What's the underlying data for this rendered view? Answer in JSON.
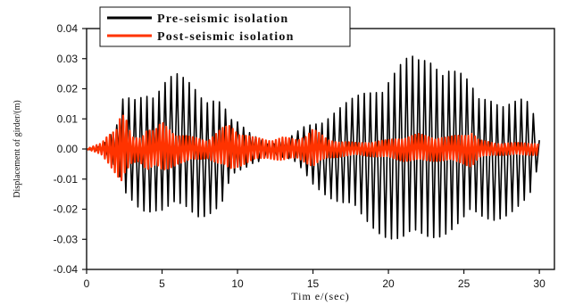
{
  "chart_data": {
    "type": "line",
    "title": "",
    "xlabel": "Tim e/(sec)",
    "ylabel": "Displacement of girder/(m)",
    "xlim": [
      0,
      31
    ],
    "ylim": [
      -0.04,
      0.04
    ],
    "x_ticks": [
      0,
      5,
      10,
      15,
      20,
      25,
      30
    ],
    "x_tick_labels": [
      "0",
      "5",
      "10",
      "15",
      "20",
      "25",
      "30"
    ],
    "y_ticks": [
      0.04,
      0.03,
      0.02,
      0.01,
      0.0,
      -0.01,
      -0.02,
      -0.03,
      -0.04
    ],
    "y_tick_labels": [
      "0.04",
      "0.03",
      "0.02",
      "0.01",
      "0.00",
      "-0.01",
      "-0.02",
      "-0.03",
      "-0.04"
    ],
    "grid": false,
    "legend_position": "top-left",
    "series": [
      {
        "name": "Pre-seismic isolation",
        "color": "#000000",
        "oscillation_period_sec": 0.4,
        "envelope": {
          "t": [
            0,
            1.0,
            1.5,
            2.0,
            2.5,
            3.0,
            3.5,
            4.0,
            4.5,
            5.0,
            5.5,
            6.0,
            6.5,
            7.0,
            7.5,
            8.0,
            8.5,
            9.0,
            9.5,
            10.0,
            10.5,
            11.0,
            11.5,
            12.0,
            12.5,
            13.0,
            13.5,
            14.0,
            14.5,
            15.0,
            16.0,
            17.0,
            18.0,
            19.0,
            20.0,
            21.0,
            21.5,
            22.0,
            22.5,
            23.0,
            23.5,
            24.0,
            25.0,
            25.5,
            26.0,
            27.0,
            28.0,
            29.0,
            29.5,
            30.0
          ],
          "max": [
            0.0,
            0.001,
            0.004,
            0.008,
            0.019,
            0.017,
            0.02,
            0.022,
            0.019,
            0.022,
            0.024,
            0.025,
            0.024,
            0.023,
            0.021,
            0.019,
            0.018,
            0.016,
            0.01,
            0.009,
            0.007,
            0.005,
            0.004,
            0.002,
            0.002,
            0.003,
            0.004,
            0.006,
            0.008,
            0.009,
            0.012,
            0.015,
            0.018,
            0.021,
            0.026,
            0.03,
            0.031,
            0.03,
            0.031,
            0.032,
            0.031,
            0.03,
            0.025,
            0.021,
            0.017,
            0.018,
            0.017,
            0.017,
            0.014,
            0.003
          ],
          "min": [
            0.0,
            -0.001,
            -0.004,
            -0.008,
            -0.016,
            -0.018,
            -0.02,
            -0.021,
            -0.021,
            -0.022,
            -0.022,
            -0.022,
            -0.021,
            -0.022,
            -0.023,
            -0.022,
            -0.021,
            -0.019,
            -0.012,
            -0.009,
            -0.007,
            -0.005,
            -0.004,
            -0.002,
            -0.002,
            -0.003,
            -0.004,
            -0.006,
            -0.009,
            -0.012,
            -0.016,
            -0.02,
            -0.024,
            -0.027,
            -0.03,
            -0.033,
            -0.034,
            -0.032,
            -0.031,
            -0.03,
            -0.029,
            -0.028,
            -0.026,
            -0.025,
            -0.025,
            -0.024,
            -0.022,
            -0.02,
            -0.018,
            -0.003
          ]
        }
      },
      {
        "name": "Post-seismic isolation",
        "color": "#ff3300",
        "oscillation_period_sec": 0.22,
        "envelope": {
          "t": [
            0,
            1.0,
            1.5,
            2.0,
            2.3,
            2.6,
            3.0,
            3.5,
            4.0,
            4.5,
            5.0,
            6.0,
            7.0,
            8.0,
            9.0,
            9.5,
            10.0,
            11.0,
            12.0,
            13.0,
            14.0,
            15.0,
            16.0,
            18.0,
            20.0,
            21.0,
            22.0,
            23.0,
            24.0,
            25.0,
            25.5,
            26.0,
            27.0,
            28.0,
            29.0,
            30.0
          ],
          "max": [
            0.0,
            0.002,
            0.006,
            0.007,
            0.012,
            0.01,
            0.004,
            0.004,
            0.007,
            0.006,
            0.009,
            0.005,
            0.004,
            0.003,
            0.007,
            0.008,
            0.006,
            0.004,
            0.003,
            0.004,
            0.003,
            0.007,
            0.003,
            0.002,
            0.003,
            0.004,
            0.005,
            0.004,
            0.004,
            0.005,
            0.006,
            0.003,
            0.002,
            0.002,
            0.002,
            0.002
          ],
          "min": [
            0.0,
            -0.002,
            -0.005,
            -0.009,
            -0.012,
            -0.009,
            -0.005,
            -0.004,
            -0.007,
            -0.006,
            -0.008,
            -0.005,
            -0.004,
            -0.003,
            -0.006,
            -0.007,
            -0.006,
            -0.004,
            -0.003,
            -0.004,
            -0.003,
            -0.006,
            -0.003,
            -0.002,
            -0.003,
            -0.004,
            -0.004,
            -0.004,
            -0.004,
            -0.005,
            -0.006,
            -0.003,
            -0.002,
            -0.002,
            -0.002,
            -0.002
          ]
        }
      }
    ]
  }
}
